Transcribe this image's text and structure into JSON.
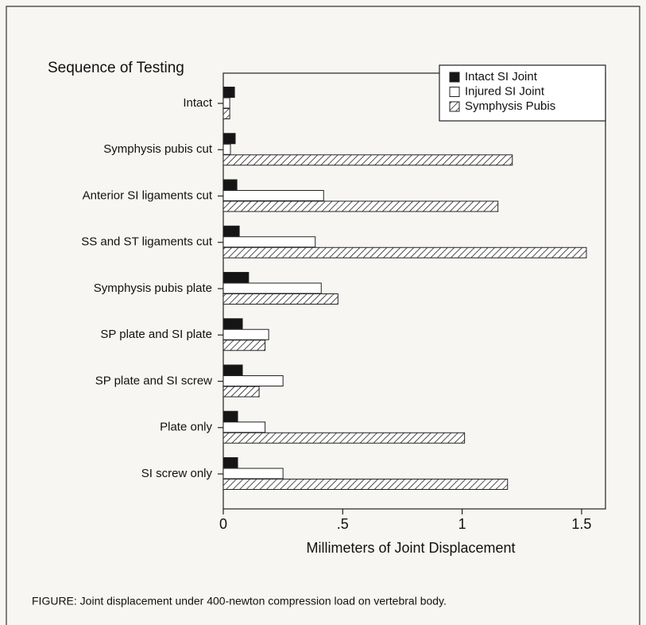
{
  "chart_data": {
    "type": "hbar",
    "title": "Sequence of Testing",
    "xlabel": "Millimeters of Joint Displacement",
    "caption": "FIGURE:  Joint displacement under 400-newton compression load on vertebral body.",
    "categories": [
      "Intact",
      "Symphysis pubis cut",
      "Anterior SI ligaments cut",
      "SS and ST ligaments cut",
      "Symphysis pubis plate",
      "SP plate and SI plate",
      "SP plate and SI screw",
      "Plate only",
      "SI screw only"
    ],
    "series": [
      {
        "name": "Intact SI Joint",
        "color": "#151515",
        "pattern": "solid",
        "values": [
          0.047,
          0.05,
          0.057,
          0.067,
          0.106,
          0.08,
          0.08,
          0.06,
          0.06
        ]
      },
      {
        "name": "Injured SI Joint",
        "color": "#ffffff",
        "pattern": "solid",
        "values": [
          0.027,
          0.03,
          0.42,
          0.385,
          0.41,
          0.19,
          0.25,
          0.175,
          0.25
        ]
      },
      {
        "name": "Symphysis Pubis",
        "color": "#ffffff",
        "pattern": "hatched",
        "values": [
          0.027,
          1.21,
          1.15,
          1.52,
          0.48,
          0.175,
          0.15,
          1.01,
          1.19
        ]
      }
    ],
    "xlim": [
      0,
      1.6
    ],
    "xticks": [
      0,
      {
        "value": 0.5,
        "label": ".5"
      },
      1,
      1.5
    ],
    "legend": "top-right"
  }
}
